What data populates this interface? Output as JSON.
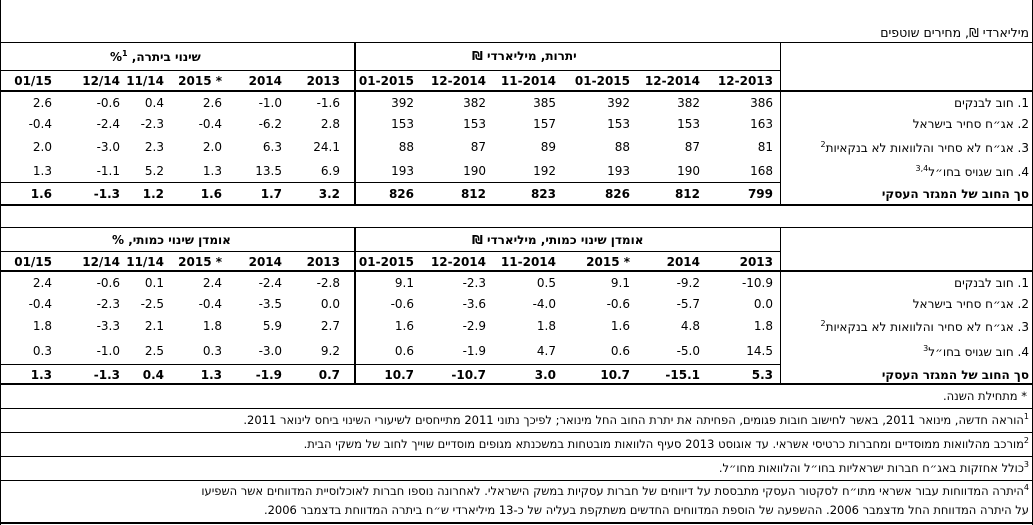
{
  "units_caption": "מיליארדי ₪, מחירים שוטפים",
  "table1": {
    "left_title": "שינוי ביתרה, %",
    "left_title_sup": "1",
    "right_title": "יתרות, מיליארדי ₪",
    "left_cols": [
      "01/15",
      "12/14",
      "11/14",
      "2015 *",
      "2014",
      "2013"
    ],
    "right_cols": [
      "01-2015",
      "12-2014",
      "11-2014",
      "01-2015",
      "12-2014",
      "12-2013"
    ],
    "rows": [
      {
        "label": "1. חוב לבנקים",
        "sup": "",
        "left": [
          "2.6",
          "-0.6",
          "0.4",
          "2.6",
          "-1.0",
          "-1.6"
        ],
        "right": [
          "392",
          "382",
          "385",
          "392",
          "382",
          "386"
        ]
      },
      {
        "label": "2. אג״ח סחיר בישראל",
        "sup": "",
        "left": [
          "-0.4",
          "-2.4",
          "-2.3",
          "-0.4",
          "-6.2",
          "2.8"
        ],
        "right": [
          "153",
          "153",
          "157",
          "153",
          "153",
          "163"
        ]
      },
      {
        "label": "3. אג״ח לא סחיר והלוואות לא בנקאיות",
        "sup": "2",
        "left": [
          "2.0",
          "-3.0",
          "2.3",
          "2.0",
          "6.3",
          "24.1"
        ],
        "right": [
          "88",
          "87",
          "89",
          "88",
          "87",
          "81"
        ]
      },
      {
        "label": "4. חוב שגויס בחו״ל",
        "sup": "3,4",
        "left": [
          "1.3",
          "-1.1",
          "5.2",
          "1.3",
          "13.5",
          "6.9"
        ],
        "right": [
          "193",
          "190",
          "192",
          "193",
          "190",
          "168"
        ]
      }
    ],
    "total": {
      "label": "סך החוב של המגזר העסקי",
      "left": [
        "1.6",
        "-1.3",
        "1.2",
        "1.6",
        "1.7",
        "3.2"
      ],
      "right": [
        "826",
        "812",
        "823",
        "826",
        "812",
        "799"
      ]
    }
  },
  "table2": {
    "left_title": "אומדן שינוי כמותי, %",
    "right_title": "אומדן שינוי כמותי, מיליארדי ₪",
    "left_cols": [
      "01/15",
      "12/14",
      "11/14",
      "2015 *",
      "2014",
      "2013"
    ],
    "right_cols": [
      "01-2015",
      "12-2014",
      "11-2014",
      "2015 *",
      "2014",
      "2013"
    ],
    "rows": [
      {
        "label": "1. חוב לבנקים",
        "sup": "",
        "left": [
          "2.4",
          "-0.6",
          "0.1",
          "2.4",
          "-2.4",
          "-2.8"
        ],
        "right": [
          "9.1",
          "-2.3",
          "0.5",
          "9.1",
          "-9.2",
          "-10.9"
        ]
      },
      {
        "label": "2. אג״ח סחיר בישראל",
        "sup": "",
        "left": [
          "-0.4",
          "-2.3",
          "-2.5",
          "-0.4",
          "-3.5",
          "0.0"
        ],
        "right": [
          "-0.6",
          "-3.6",
          "-4.0",
          "-0.6",
          "-5.7",
          "0.0"
        ]
      },
      {
        "label": "3. אג״ח לא סחיר והלוואות לא בנקאיות",
        "sup": "2",
        "left": [
          "1.8",
          "-3.3",
          "2.1",
          "1.8",
          "5.9",
          "2.7"
        ],
        "right": [
          "1.6",
          "-2.9",
          "1.8",
          "1.6",
          "4.8",
          "1.8"
        ]
      },
      {
        "label": "4. חוב שגויס בחו״ל",
        "sup": "3",
        "left": [
          "0.3",
          "-1.0",
          "2.5",
          "0.3",
          "-3.0",
          "9.2"
        ],
        "right": [
          "0.6",
          "-1.9",
          "4.7",
          "0.6",
          "-5.0",
          "14.5"
        ]
      }
    ],
    "total": {
      "label": "סך החוב של המגזר העסקי",
      "left": [
        "1.3",
        "-1.3",
        "0.4",
        "1.3",
        "-1.9",
        "0.7"
      ],
      "right": [
        "10.7",
        "-10.7",
        "3.0",
        "10.7",
        "-15.1",
        "5.3"
      ]
    }
  },
  "notes": {
    "star": "* מתחילת השנה.",
    "n1_sup": "1",
    "n1": "הוראה חדשה, מינואר 2011, באשר לחישוב חובות פגומים, הפחיתה את יתרת החוב החל מינואר; לפיכך נתוני 2011 מתייחסים לשיעורי השינוי ביחס לינואר 2011.",
    "n2_sup": "2",
    "n2": "מורכב מהלוואות ממוסדיים ומחברות כרטיסי אשראי. עד אוגוסט 2013 סעיף הלוואות מובטחות במשכנתא מגופים מוסדיים שוייך לחוב של משקי הבית.",
    "n3_sup": "3",
    "n3": "כולל אחזקות באג״ח חברות ישראליות בחו״ל והלוואות מחו״ל.",
    "n4_sup": "4",
    "n4_line1": "היתרה המדווחות עבור אשראי מתו״ח לסקטור העסקי מתבססת על דיווחים של חברות עסקיות במשק הישראלי. לאחרונה נוספו חברות לאוכלוסיית המדווחים אשר השפיעו",
    "n4_line2": "על היתרה המדווחת החל מדצמבר 2006. ההשפעה של הוספת המדווחים החדשים משתקפת בעליה של כ-13 מיליארדי ש״ח ביתרה המדווחת בדצמבר 2006."
  }
}
